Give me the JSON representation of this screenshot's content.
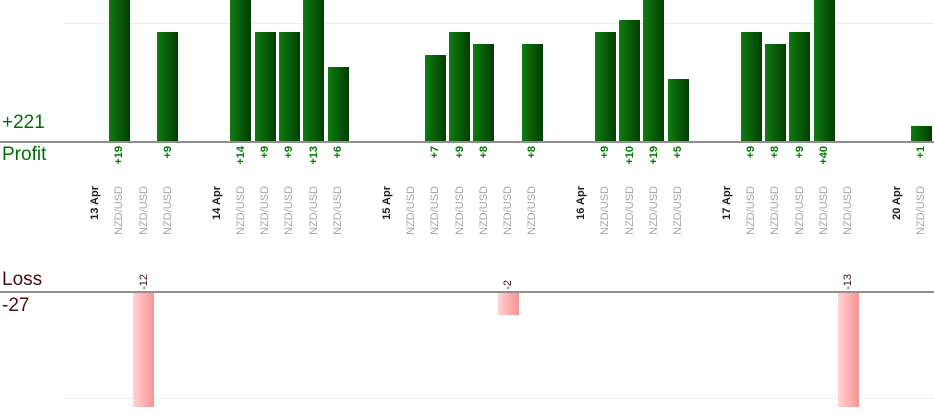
{
  "chart_data": {
    "type": "bar",
    "title": "",
    "orientation": "vertical",
    "unit": "pips",
    "legend": "none",
    "grid": "horizontal-faint",
    "profit_axis": {
      "total_label": "+221",
      "axis_label": "Profit",
      "total": 221,
      "color": "#007000"
    },
    "loss_axis": {
      "axis_label": "Loss",
      "total_label": "-27",
      "total": -27,
      "color": "#4c0d0d"
    },
    "groups": [
      {
        "date": "13 Apr",
        "trades": [
          {
            "symbol": "NZD/USD",
            "pips": 19,
            "label": "+19"
          },
          {
            "symbol": "NZD/USD",
            "pips": -12,
            "label": "-12"
          },
          {
            "symbol": "NZD/USD",
            "pips": 9,
            "label": "+9"
          }
        ]
      },
      {
        "date": "14 Apr",
        "trades": [
          {
            "symbol": "NZD/USD",
            "pips": 14,
            "label": "+14"
          },
          {
            "symbol": "NZD/USD",
            "pips": 9,
            "label": "+9"
          },
          {
            "symbol": "NZD/USD",
            "pips": 9,
            "label": "+9"
          },
          {
            "symbol": "NZD/USD",
            "pips": 13,
            "label": "+13"
          },
          {
            "symbol": "NZD/USD",
            "pips": 6,
            "label": "+6"
          }
        ]
      },
      {
        "date": "15 Apr",
        "trades": [
          {
            "symbol": "NZD/USD",
            "pips": 0,
            "label": ""
          },
          {
            "symbol": "NZD/USD",
            "pips": 7,
            "label": "+7"
          },
          {
            "symbol": "NZD/USD",
            "pips": 9,
            "label": "+9"
          },
          {
            "symbol": "NZD/USD",
            "pips": 8,
            "label": "+8"
          },
          {
            "symbol": "NZD/USD",
            "pips": -2,
            "label": "-2"
          },
          {
            "symbol": "NZD/USD",
            "pips": 8,
            "label": "+8"
          }
        ]
      },
      {
        "date": "16 Apr",
        "trades": [
          {
            "symbol": "NZD/USD",
            "pips": 9,
            "label": "+9"
          },
          {
            "symbol": "NZD/USD",
            "pips": 10,
            "label": "+10"
          },
          {
            "symbol": "NZD/USD",
            "pips": 19,
            "label": "+19"
          },
          {
            "symbol": "NZD/USD",
            "pips": 5,
            "label": "+5"
          }
        ]
      },
      {
        "date": "17 Apr",
        "trades": [
          {
            "symbol": "NZD/USD",
            "pips": 9,
            "label": "+9"
          },
          {
            "symbol": "NZD/USD",
            "pips": 8,
            "label": "+8"
          },
          {
            "symbol": "NZD/USD",
            "pips": 9,
            "label": "+9"
          },
          {
            "symbol": "NZD/USD",
            "pips": 40,
            "label": "+40"
          },
          {
            "symbol": "NZD/USD",
            "pips": -13,
            "label": "-13"
          }
        ]
      },
      {
        "date": "20 Apr",
        "trades": [
          {
            "symbol": "NZD/USD",
            "pips": 1,
            "label": "+1"
          }
        ]
      }
    ],
    "colors": {
      "profit_bar_start": "#117c11",
      "profit_bar_end": "#013d01",
      "loss_bar_start": "#ffd4d4",
      "loss_bar_end": "#f59494",
      "profit_value_text": "#007c00",
      "loss_value_text": "#4a1212",
      "date_text": "#1f1f1f",
      "symbol_text": "#a6a6a6",
      "axis_line": "#8f8f8f",
      "gridline": "#ececec"
    }
  }
}
